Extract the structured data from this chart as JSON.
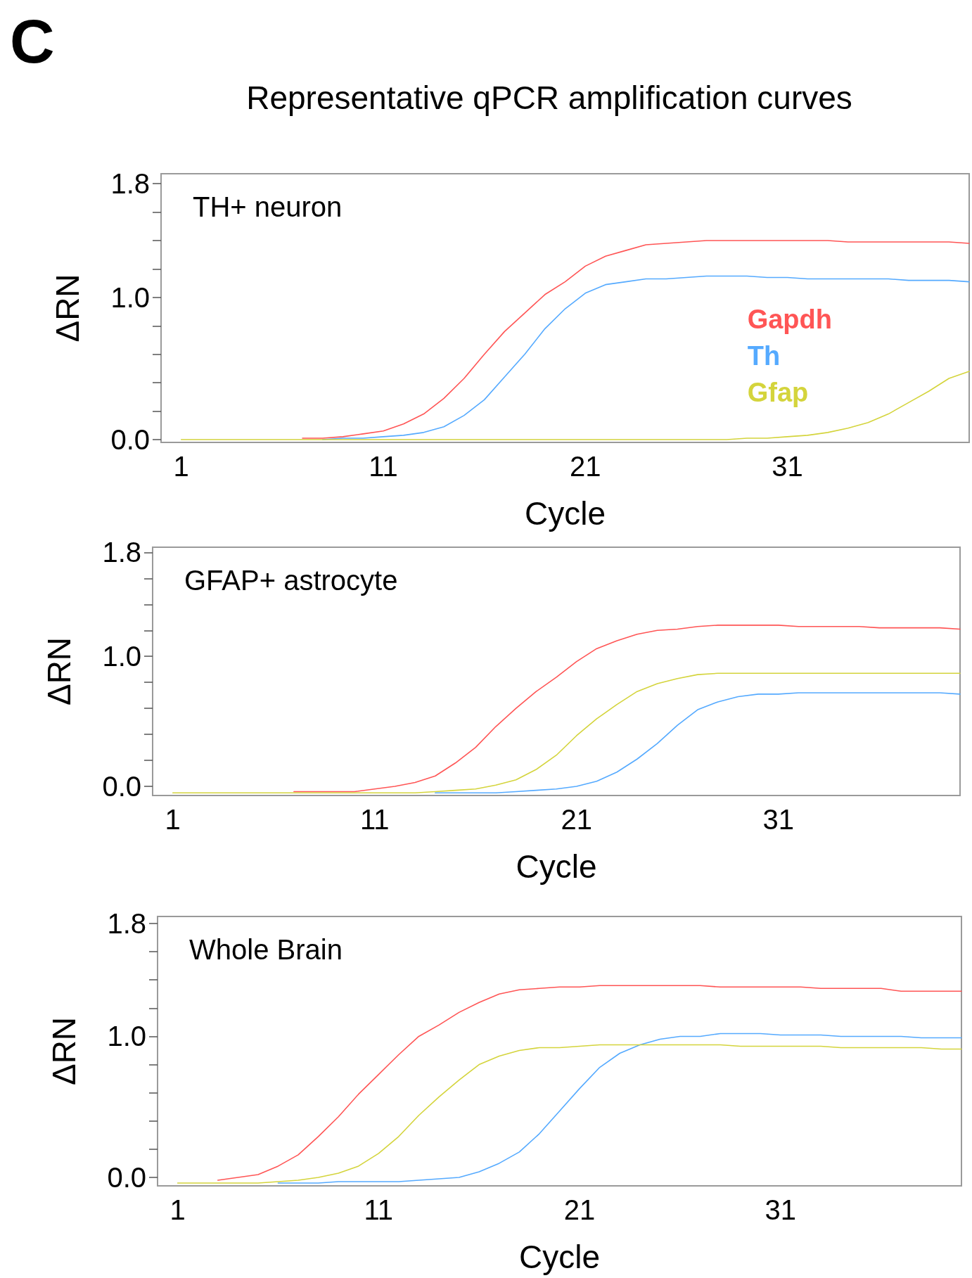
{
  "chart_data": [
    {
      "type": "line",
      "title": "TH+ neuron",
      "annotations": [
        "C",
        "Representative qPCR amplification curves"
      ],
      "xlabel": "Cycle",
      "ylabel": "ΔRN",
      "x": [
        1,
        2,
        3,
        4,
        5,
        6,
        7,
        8,
        9,
        10,
        11,
        12,
        13,
        14,
        15,
        16,
        17,
        18,
        19,
        20,
        21,
        22,
        23,
        24,
        25,
        26,
        27,
        28,
        29,
        30,
        31,
        32,
        33,
        34,
        35,
        36,
        37,
        38,
        39,
        40
      ],
      "xlim": [
        0,
        40
      ],
      "xticks": [
        1,
        11,
        21,
        31
      ],
      "ylim": [
        -0.02,
        1.87
      ],
      "yticks": [
        {
          "value": 0,
          "label": "0.0"
        },
        {
          "value": 0.2,
          "label": null
        },
        {
          "value": 0.4,
          "label": null
        },
        {
          "value": 0.6,
          "label": null
        },
        {
          "value": 0.8,
          "label": null
        },
        {
          "value": 1.0,
          "label": "1.0"
        },
        {
          "value": 1.2,
          "label": null
        },
        {
          "value": 1.4,
          "label": null
        },
        {
          "value": 1.6,
          "label": null
        },
        {
          "value": 1.8,
          "label": "1.8"
        }
      ],
      "grid": false,
      "legend": "right",
      "marker": "none",
      "line_style": "solid",
      "series": [
        {
          "name": "Gapdh",
          "color": "#ff5555",
          "values": [
            null,
            null,
            null,
            null,
            null,
            null,
            0.01,
            0.01,
            0.02,
            0.04,
            0.06,
            0.11,
            0.18,
            0.29,
            0.43,
            0.6,
            0.76,
            0.89,
            1.02,
            1.11,
            1.22,
            1.29,
            1.33,
            1.37,
            1.38,
            1.39,
            1.4,
            1.4,
            1.4,
            1.4,
            1.4,
            1.4,
            1.4,
            1.39,
            1.39,
            1.39,
            1.39,
            1.39,
            1.39,
            1.38
          ]
        },
        {
          "name": "Th",
          "color": "#55aaff",
          "values": [
            null,
            null,
            null,
            null,
            null,
            null,
            null,
            0,
            0.01,
            0.01,
            0.02,
            0.03,
            0.05,
            0.09,
            0.17,
            0.28,
            0.44,
            0.6,
            0.78,
            0.92,
            1.03,
            1.09,
            1.11,
            1.13,
            1.13,
            1.14,
            1.15,
            1.15,
            1.15,
            1.14,
            1.14,
            1.13,
            1.13,
            1.13,
            1.13,
            1.13,
            1.12,
            1.12,
            1.12,
            1.11
          ]
        },
        {
          "name": "Gfap",
          "color": "#d4d43c",
          "values": [
            0,
            0,
            0,
            0,
            0,
            0,
            0,
            0,
            0,
            0,
            0,
            0,
            0,
            0,
            0,
            0,
            0,
            0,
            0,
            0,
            0,
            0,
            0,
            0,
            0,
            0,
            0,
            0,
            0.01,
            0.01,
            0.02,
            0.03,
            0.05,
            0.08,
            0.12,
            0.18,
            0.26,
            0.34,
            0.43,
            0.48
          ]
        }
      ]
    },
    {
      "type": "line",
      "title": "GFAP+ astrocyte",
      "xlabel": "Cycle",
      "ylabel": "ΔRN",
      "x": [
        1,
        2,
        3,
        4,
        5,
        6,
        7,
        8,
        9,
        10,
        11,
        12,
        13,
        14,
        15,
        16,
        17,
        18,
        19,
        20,
        21,
        22,
        23,
        24,
        25,
        26,
        27,
        28,
        29,
        30,
        31,
        32,
        33,
        34,
        35,
        36,
        37,
        38,
        39,
        40
      ],
      "xlim": [
        0,
        40
      ],
      "xticks": [
        1,
        11,
        21,
        31
      ],
      "ylim": [
        -0.07,
        1.84
      ],
      "yticks": [
        {
          "value": 0,
          "label": "0.0"
        },
        {
          "value": 0.2,
          "label": null
        },
        {
          "value": 0.4,
          "label": null
        },
        {
          "value": 0.6,
          "label": null
        },
        {
          "value": 0.8,
          "label": null
        },
        {
          "value": 1.0,
          "label": "1.0"
        },
        {
          "value": 1.2,
          "label": null
        },
        {
          "value": 1.4,
          "label": null
        },
        {
          "value": 1.6,
          "label": null
        },
        {
          "value": 1.8,
          "label": "1.8"
        }
      ],
      "grid": false,
      "marker": "none",
      "line_style": "solid",
      "series": [
        {
          "color": "#ff5555",
          "values": [
            null,
            null,
            null,
            null,
            null,
            null,
            -0.04,
            -0.04,
            -0.04,
            -0.04,
            -0.02,
            0,
            0.03,
            0.08,
            0.18,
            0.3,
            0.46,
            0.6,
            0.73,
            0.84,
            0.96,
            1.06,
            1.12,
            1.17,
            1.2,
            1.21,
            1.23,
            1.24,
            1.24,
            1.24,
            1.24,
            1.23,
            1.23,
            1.23,
            1.23,
            1.22,
            1.22,
            1.22,
            1.22,
            1.21
          ]
        },
        {
          "color": "#55aaff",
          "values": [
            null,
            null,
            null,
            null,
            null,
            null,
            null,
            null,
            null,
            null,
            null,
            null,
            null,
            -0.05,
            -0.05,
            -0.05,
            -0.05,
            -0.04,
            -0.03,
            -0.02,
            0,
            0.04,
            0.11,
            0.21,
            0.33,
            0.47,
            0.59,
            0.65,
            0.69,
            0.71,
            0.71,
            0.72,
            0.72,
            0.72,
            0.72,
            0.72,
            0.72,
            0.72,
            0.72,
            0.71
          ]
        },
        {
          "color": "#d4d43c",
          "values": [
            -0.05,
            -0.05,
            -0.05,
            -0.05,
            -0.05,
            -0.05,
            -0.05,
            -0.05,
            -0.05,
            -0.05,
            -0.05,
            -0.05,
            -0.05,
            -0.04,
            -0.03,
            -0.02,
            0.01,
            0.05,
            0.13,
            0.24,
            0.39,
            0.52,
            0.63,
            0.73,
            0.79,
            0.83,
            0.86,
            0.87,
            0.87,
            0.87,
            0.87,
            0.87,
            0.87,
            0.87,
            0.87,
            0.87,
            0.87,
            0.87,
            0.87,
            0.87
          ]
        }
      ]
    },
    {
      "type": "line",
      "title": "Whole Brain",
      "xlabel": "Cycle",
      "ylabel": "ΔRN",
      "x": [
        1,
        2,
        3,
        4,
        5,
        6,
        7,
        8,
        9,
        10,
        11,
        12,
        13,
        14,
        15,
        16,
        17,
        18,
        19,
        20,
        21,
        22,
        23,
        24,
        25,
        26,
        27,
        28,
        29,
        30,
        31,
        32,
        33,
        34,
        35,
        36,
        37,
        38,
        39,
        40
      ],
      "xlim": [
        0,
        40
      ],
      "xticks": [
        1,
        11,
        21,
        31
      ],
      "ylim": [
        -0.06,
        1.85
      ],
      "yticks": [
        {
          "value": 0,
          "label": "0.0"
        },
        {
          "value": 0.2,
          "label": null
        },
        {
          "value": 0.4,
          "label": null
        },
        {
          "value": 0.6,
          "label": null
        },
        {
          "value": 0.8,
          "label": null
        },
        {
          "value": 1.0,
          "label": "1.0"
        },
        {
          "value": 1.2,
          "label": null
        },
        {
          "value": 1.4,
          "label": null
        },
        {
          "value": 1.6,
          "label": null
        },
        {
          "value": 1.8,
          "label": "1.8"
        }
      ],
      "grid": false,
      "marker": "none",
      "line_style": "solid",
      "series": [
        {
          "color": "#ff5555",
          "values": [
            null,
            null,
            -0.02,
            0,
            0.02,
            0.08,
            0.16,
            0.29,
            0.43,
            0.59,
            0.73,
            0.87,
            1.0,
            1.08,
            1.17,
            1.24,
            1.3,
            1.33,
            1.34,
            1.35,
            1.35,
            1.36,
            1.36,
            1.36,
            1.36,
            1.36,
            1.36,
            1.35,
            1.35,
            1.35,
            1.35,
            1.35,
            1.34,
            1.34,
            1.34,
            1.34,
            1.32,
            1.32,
            1.32,
            1.32
          ]
        },
        {
          "color": "#55aaff",
          "values": [
            null,
            null,
            null,
            null,
            null,
            -0.04,
            -0.04,
            -0.04,
            -0.03,
            -0.03,
            -0.03,
            -0.03,
            -0.02,
            -0.01,
            0,
            0.04,
            0.1,
            0.18,
            0.31,
            0.47,
            0.63,
            0.78,
            0.88,
            0.94,
            0.98,
            1.0,
            1.0,
            1.02,
            1.02,
            1.02,
            1.01,
            1.01,
            1.01,
            1.0,
            1.0,
            1.0,
            1.0,
            0.99,
            0.99,
            0.99
          ]
        },
        {
          "color": "#d4d43c",
          "values": [
            -0.04,
            -0.04,
            -0.04,
            -0.04,
            -0.04,
            -0.03,
            -0.02,
            0,
            0.03,
            0.08,
            0.17,
            0.29,
            0.44,
            0.57,
            0.69,
            0.8,
            0.86,
            0.9,
            0.92,
            0.92,
            0.93,
            0.94,
            0.94,
            0.94,
            0.94,
            0.94,
            0.94,
            0.94,
            0.93,
            0.93,
            0.93,
            0.93,
            0.93,
            0.92,
            0.92,
            0.92,
            0.92,
            0.92,
            0.91,
            0.91
          ]
        }
      ]
    }
  ]
}
